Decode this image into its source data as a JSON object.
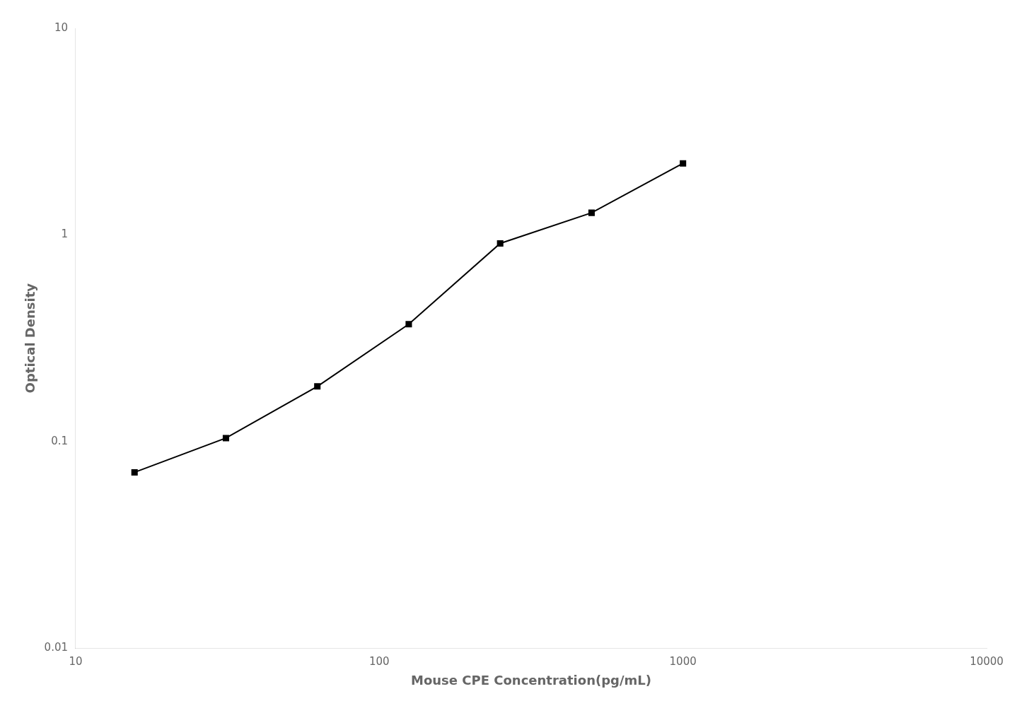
{
  "chart_data": {
    "type": "line",
    "x": [
      15.625,
      31.25,
      62.5,
      125,
      250,
      500,
      1000
    ],
    "values": [
      0.071,
      0.104,
      0.185,
      0.37,
      0.91,
      1.28,
      2.22
    ],
    "xlabel": "Mouse CPE Concentration(pg/mL)",
    "ylabel": "Optical Density",
    "xlim": [
      10,
      10000
    ],
    "ylim": [
      0.01,
      10
    ],
    "xticks": [
      10,
      100,
      1000,
      10000
    ],
    "yticks": [
      0.01,
      0.1,
      1,
      10
    ],
    "log": true,
    "grid": false,
    "color": "#000000",
    "marker": "square"
  }
}
